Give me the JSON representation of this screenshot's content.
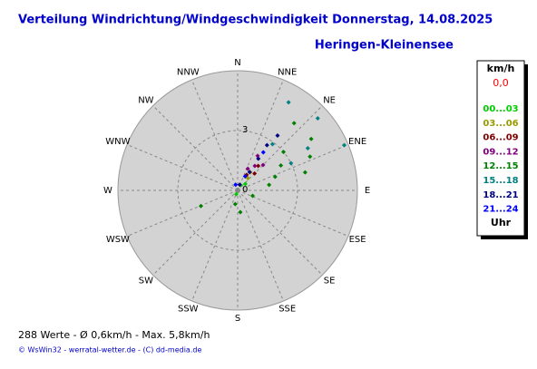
{
  "chart_data": {
    "type": "polar-scatter",
    "title": "Verteilung Windrichtung/Windgeschwindigkeit  Donnerstag, 14.08.2025",
    "subtitle": "Heringen-Kleinensee",
    "directions": [
      "N",
      "NNE",
      "NE",
      "ENE",
      "E",
      "ESE",
      "SE",
      "SSE",
      "S",
      "SSW",
      "SW",
      "WSW",
      "W",
      "WNW",
      "NW",
      "NNW"
    ],
    "rlim": [
      0,
      6
    ],
    "rticks": [
      0,
      3
    ],
    "legend_title": "km/h",
    "legend_calm": "0,0",
    "legend_footer": "Uhr",
    "series": [
      {
        "name": "00...03",
        "color": "#00cc00",
        "theta": [
          30,
          50,
          200
        ],
        "r": [
          0.3,
          0.5,
          0.2
        ]
      },
      {
        "name": "03...06",
        "color": "#999900",
        "theta": [
          40,
          35
        ],
        "r": [
          0.8,
          1.1
        ]
      },
      {
        "name": "06...09",
        "color": "#800000",
        "theta": [
          45,
          40,
          30
        ],
        "r": [
          1.2,
          1.6,
          0.9
        ]
      },
      {
        "name": "09...12",
        "color": "#800080",
        "theta": [
          35,
          30,
          45,
          25
        ],
        "r": [
          1.5,
          2.0,
          1.8,
          1.2
        ]
      },
      {
        "name": "12...15",
        "color": "#008000",
        "theta": [
          60,
          70,
          80,
          50,
          110,
          247,
          173,
          190,
          75,
          65,
          55,
          40
        ],
        "r": [
          2.5,
          2.0,
          1.6,
          3.0,
          0.8,
          2.0,
          1.1,
          0.7,
          3.5,
          4.0,
          4.5,
          4.4
        ]
      },
      {
        "name": "15...18",
        "color": "#008080",
        "theta": [
          67,
          48,
          59,
          30,
          63,
          37
        ],
        "r": [
          5.8,
          5.4,
          4.1,
          5.1,
          3.0,
          2.9
        ]
      },
      {
        "name": "18...21",
        "color": "#000080",
        "theta": [
          36,
          33,
          33,
          33,
          20
        ],
        "r": [
          3.4,
          2.7,
          1.9,
          1.1,
          0.3
        ]
      },
      {
        "name": "21...24",
        "color": "#0000ff",
        "theta": [
          340,
          28,
          34
        ],
        "r": [
          0.3,
          0.8,
          2.3
        ]
      }
    ],
    "footer": "288 Werte   -   Ø 0,6km/h  -  Max. 5,8km/h",
    "credits": "© WsWin32  -  werratal-wetter.de  -  (C) dd-media.de"
  }
}
